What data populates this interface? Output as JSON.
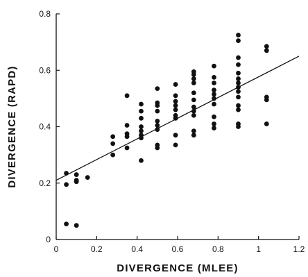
{
  "chart_data": {
    "type": "scatter",
    "xlabel": "DIVERGENCE (MLEE)",
    "ylabel": "DIVERGENCE (RAPD)",
    "xlim": [
      0,
      1.2
    ],
    "ylim": [
      0,
      0.8
    ],
    "xticks": [
      0,
      0.2,
      0.4,
      0.6,
      0.8,
      1.0,
      1.2
    ],
    "xtick_labels": [
      "0",
      "0.2",
      "0.4",
      "0.6",
      "0.8",
      "1",
      "1.2"
    ],
    "yticks": [
      0,
      0.2,
      0.4,
      0.6,
      0.8
    ],
    "ytick_labels": [
      "0",
      "0.2",
      "0.4",
      "0.6",
      "0.8"
    ],
    "grid": false,
    "marker_color": "#111111",
    "series": [
      {
        "points": [
          [
            0.05,
            0.235
          ],
          [
            0.05,
            0.195
          ],
          [
            0.05,
            0.055
          ],
          [
            0.1,
            0.23
          ],
          [
            0.1,
            0.21
          ],
          [
            0.1,
            0.205
          ],
          [
            0.1,
            0.05
          ],
          [
            0.155,
            0.22
          ],
          [
            0.28,
            0.365
          ],
          [
            0.28,
            0.34
          ],
          [
            0.28,
            0.3
          ],
          [
            0.35,
            0.51
          ],
          [
            0.35,
            0.405
          ],
          [
            0.35,
            0.375
          ],
          [
            0.35,
            0.365
          ],
          [
            0.35,
            0.325
          ],
          [
            0.42,
            0.48
          ],
          [
            0.42,
            0.455
          ],
          [
            0.42,
            0.43
          ],
          [
            0.42,
            0.4
          ],
          [
            0.42,
            0.385
          ],
          [
            0.42,
            0.37
          ],
          [
            0.42,
            0.36
          ],
          [
            0.42,
            0.28
          ],
          [
            0.5,
            0.535
          ],
          [
            0.5,
            0.485
          ],
          [
            0.5,
            0.475
          ],
          [
            0.5,
            0.455
          ],
          [
            0.5,
            0.42
          ],
          [
            0.5,
            0.405
          ],
          [
            0.5,
            0.39
          ],
          [
            0.5,
            0.335
          ],
          [
            0.5,
            0.325
          ],
          [
            0.59,
            0.55
          ],
          [
            0.59,
            0.51
          ],
          [
            0.59,
            0.49
          ],
          [
            0.59,
            0.475
          ],
          [
            0.59,
            0.46
          ],
          [
            0.59,
            0.44
          ],
          [
            0.59,
            0.43
          ],
          [
            0.59,
            0.37
          ],
          [
            0.59,
            0.335
          ],
          [
            0.68,
            0.595
          ],
          [
            0.68,
            0.585
          ],
          [
            0.68,
            0.57
          ],
          [
            0.68,
            0.555
          ],
          [
            0.68,
            0.52
          ],
          [
            0.68,
            0.495
          ],
          [
            0.68,
            0.47
          ],
          [
            0.68,
            0.455
          ],
          [
            0.68,
            0.44
          ],
          [
            0.68,
            0.385
          ],
          [
            0.68,
            0.37
          ],
          [
            0.78,
            0.615
          ],
          [
            0.78,
            0.575
          ],
          [
            0.78,
            0.555
          ],
          [
            0.78,
            0.53
          ],
          [
            0.78,
            0.515
          ],
          [
            0.78,
            0.5
          ],
          [
            0.78,
            0.48
          ],
          [
            0.78,
            0.435
          ],
          [
            0.78,
            0.41
          ],
          [
            0.78,
            0.395
          ],
          [
            0.9,
            0.725
          ],
          [
            0.9,
            0.705
          ],
          [
            0.9,
            0.645
          ],
          [
            0.9,
            0.62
          ],
          [
            0.9,
            0.59
          ],
          [
            0.9,
            0.57
          ],
          [
            0.9,
            0.555
          ],
          [
            0.9,
            0.54
          ],
          [
            0.9,
            0.525
          ],
          [
            0.9,
            0.505
          ],
          [
            0.9,
            0.475
          ],
          [
            0.9,
            0.46
          ],
          [
            0.9,
            0.41
          ],
          [
            0.9,
            0.4
          ],
          [
            1.04,
            0.685
          ],
          [
            1.04,
            0.67
          ],
          [
            1.04,
            0.505
          ],
          [
            1.04,
            0.495
          ],
          [
            1.04,
            0.41
          ]
        ]
      }
    ],
    "regression_line": {
      "x": [
        0,
        1.2
      ],
      "y": [
        0.21,
        0.65
      ]
    }
  }
}
